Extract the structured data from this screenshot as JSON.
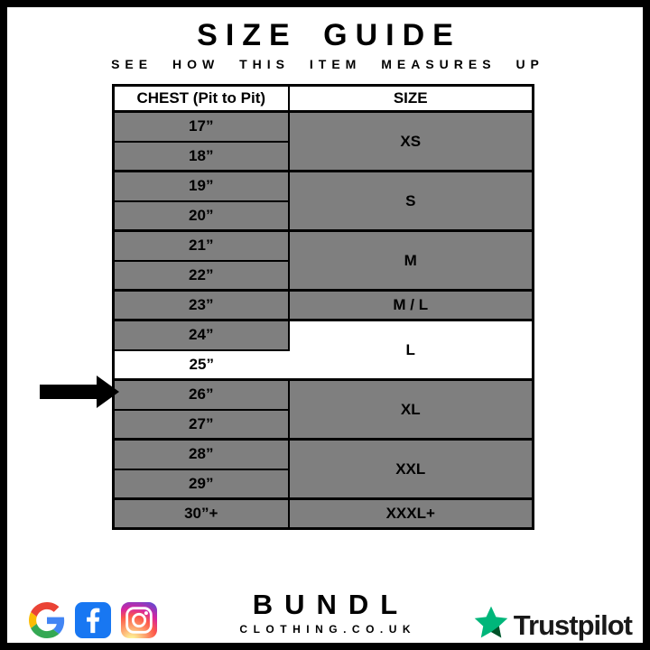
{
  "page": {
    "title": "SIZE GUIDE",
    "subtitle": "SEE HOW THIS ITEM MEASURES UP"
  },
  "table": {
    "headers": [
      "CHEST (Pit to Pit)",
      "SIZE"
    ],
    "groups": [
      {
        "size": "XS",
        "chests": [
          "17”",
          "18”"
        ]
      },
      {
        "size": "S",
        "chests": [
          "19”",
          "20”"
        ]
      },
      {
        "size": "M",
        "chests": [
          "21”",
          "22”"
        ]
      },
      {
        "size": "M / L",
        "chests": [
          "23”"
        ]
      },
      {
        "size": "L",
        "chests": [
          "24”",
          "25”"
        ]
      },
      {
        "size": "XL",
        "chests": [
          "26”",
          "27”"
        ]
      },
      {
        "size": "XXL",
        "chests": [
          "28”",
          "29”"
        ]
      },
      {
        "size": "XXXL+",
        "chests": [
          "30”+"
        ]
      }
    ],
    "highlighted_chest": "25”",
    "highlighted_size": "L"
  },
  "footer": {
    "brand_name": "BUNDL",
    "brand_domain": "CLOTHING.CO.UK",
    "trustpilot_label": "Trustpilot",
    "icons": [
      "google-icon",
      "facebook-icon",
      "instagram-icon",
      "trustpilot-star-icon"
    ]
  },
  "colors": {
    "row_gray": "#7f7f7f",
    "highlight_white": "#ffffff",
    "border_black": "#000000",
    "facebook_blue": "#1877F2",
    "trustpilot_green": "#00B67A",
    "trustpilot_dark_green": "#005128"
  },
  "chart_data": {
    "type": "table",
    "title": "SIZE GUIDE",
    "subtitle": "SEE HOW THIS ITEM MEASURES UP",
    "columns": [
      "CHEST (Pit to Pit)",
      "SIZE"
    ],
    "rows": [
      [
        "17”",
        "XS"
      ],
      [
        "18”",
        "XS"
      ],
      [
        "19”",
        "S"
      ],
      [
        "20”",
        "S"
      ],
      [
        "21”",
        "M"
      ],
      [
        "22”",
        "M"
      ],
      [
        "23”",
        "M / L"
      ],
      [
        "24”",
        "L"
      ],
      [
        "25”",
        "L"
      ],
      [
        "26”",
        "XL"
      ],
      [
        "27”",
        "XL"
      ],
      [
        "28”",
        "XXL"
      ],
      [
        "29”",
        "XXL"
      ],
      [
        "30”+",
        "XXXL+"
      ]
    ],
    "highlighted_row": [
      "25”",
      "L"
    ],
    "annotation": "arrow pointing at 25” / L row"
  }
}
